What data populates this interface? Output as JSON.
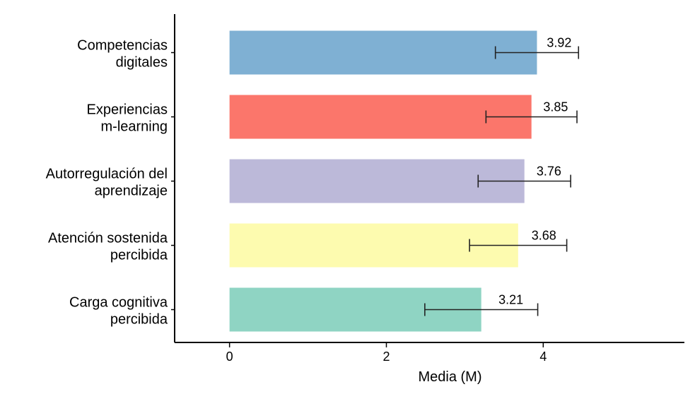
{
  "chart_data": {
    "type": "bar",
    "orientation": "horizontal",
    "xlabel": "Media (M)",
    "ylabel": "",
    "xlim": [
      -0.7,
      5.8
    ],
    "xticks": [
      0,
      2,
      4
    ],
    "grid": false,
    "categories": [
      [
        "Competencias",
        "digitales"
      ],
      [
        "Experiencias",
        "m-learning"
      ],
      [
        "Autorregulación del",
        "aprendizaje"
      ],
      [
        "Atención sostenida",
        "percibida"
      ],
      [
        "Carga cognitiva",
        "percibida"
      ]
    ],
    "values": [
      3.92,
      3.85,
      3.76,
      3.68,
      3.21
    ],
    "value_labels": [
      "3.92",
      "3.85",
      "3.76",
      "3.68",
      "3.21"
    ],
    "error_low": [
      3.39,
      3.27,
      3.17,
      3.06,
      2.49
    ],
    "error_high": [
      4.45,
      4.43,
      4.35,
      4.3,
      3.93
    ],
    "colors": [
      "#7fb0d3",
      "#fb766b",
      "#bcb9d9",
      "#fdfbaf",
      "#8fd4c3"
    ]
  }
}
